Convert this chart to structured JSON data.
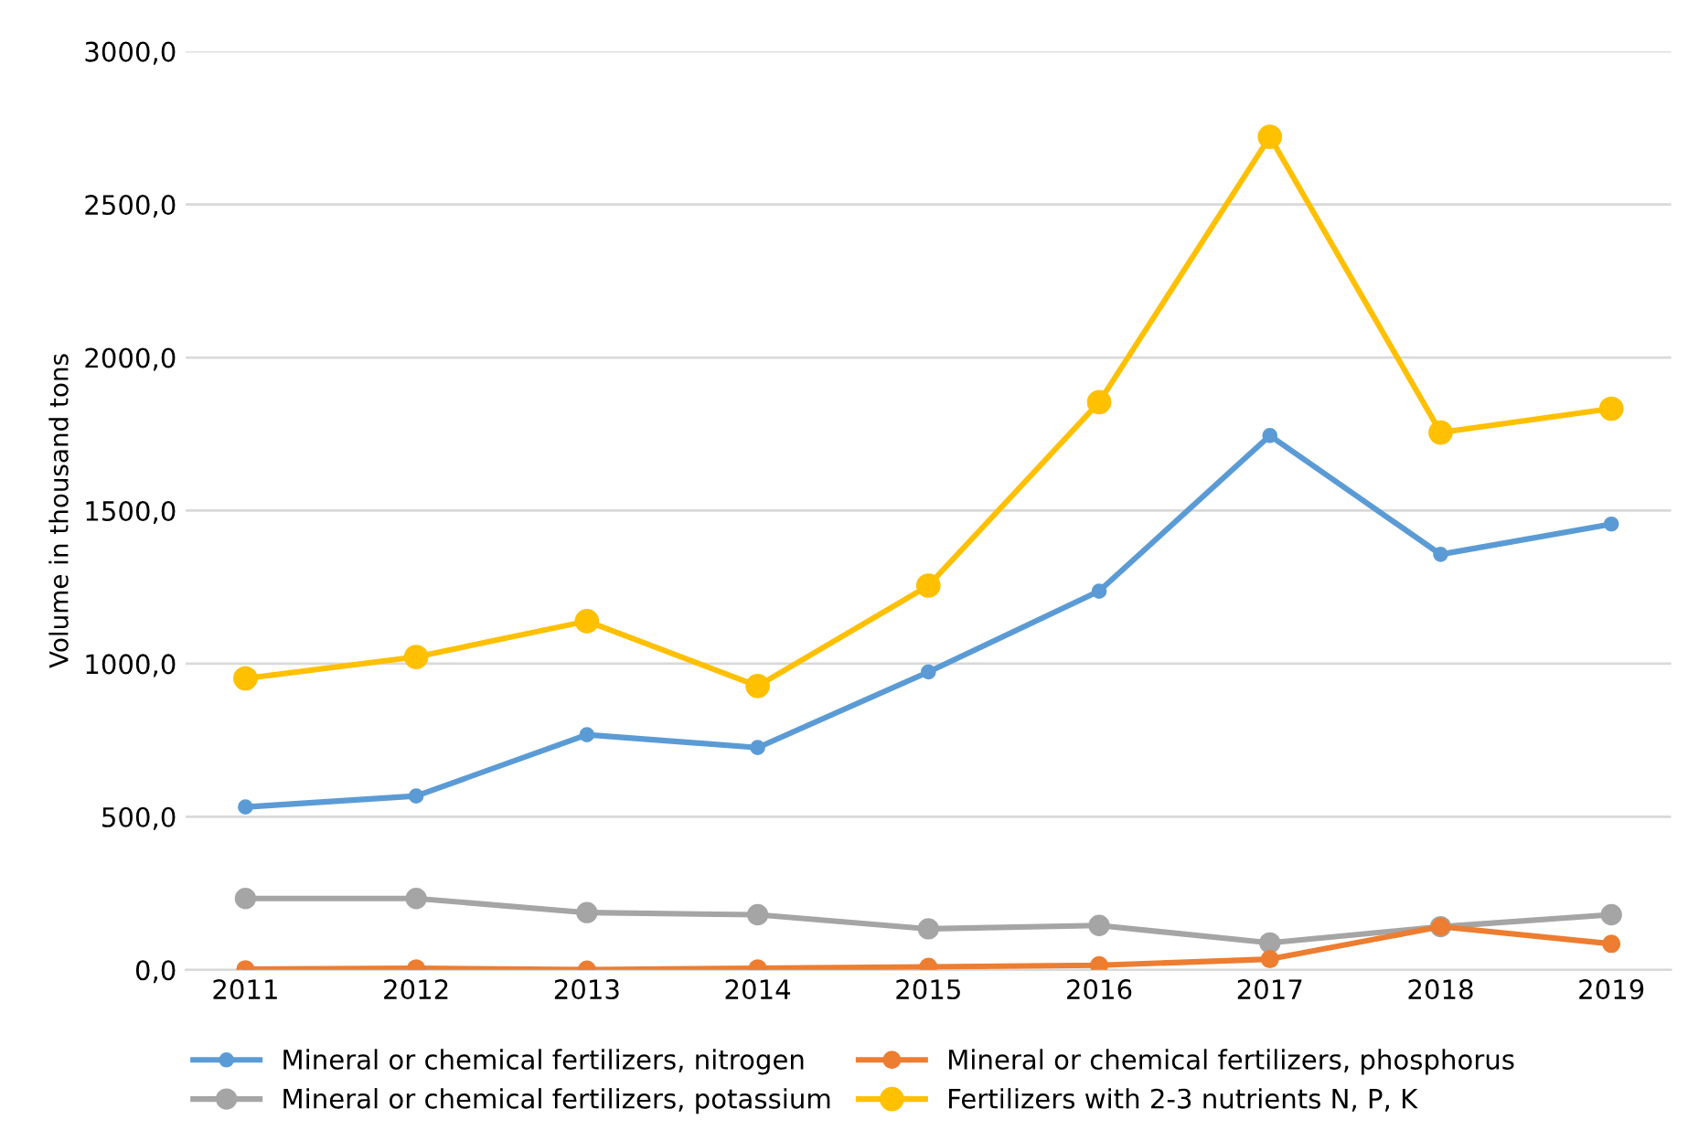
{
  "chart_data": {
    "type": "line",
    "ylabel": "Volume in thousand tons",
    "categories": [
      "2011",
      "2012",
      "2013",
      "2014",
      "2015",
      "2016",
      "2017",
      "2018",
      "2019"
    ],
    "series": [
      {
        "name": "Mineral or chemical fertilizers, nitrogen",
        "color": "#5b9bd5",
        "values": [
          532,
          568,
          768,
          726,
          973,
          1237,
          1745,
          1357,
          1456
        ]
      },
      {
        "name": "Mineral or chemical fertilizers, phosphorus",
        "color": "#ed7d31",
        "values": [
          2,
          5,
          1,
          5,
          10,
          15,
          35,
          141,
          85
        ]
      },
      {
        "name": "Mineral or chemical fertilizers, potassium",
        "color": "#a5a5a5",
        "values": [
          233,
          233,
          187,
          180,
          134,
          145,
          88,
          141,
          180
        ]
      },
      {
        "name": "Fertilizers with 2-3 nutrients N, P, K",
        "color": "#ffc000",
        "values": [
          952,
          1022,
          1139,
          927,
          1255,
          1854,
          2721,
          1755,
          1833
        ]
      }
    ],
    "ylim": [
      0,
      3000
    ],
    "yticks": [
      {
        "value": 0,
        "label": "0,0"
      },
      {
        "value": 500,
        "label": "500,0"
      },
      {
        "value": 1000,
        "label": "1000,0"
      },
      {
        "value": 1500,
        "label": "1500,0"
      },
      {
        "value": 2000,
        "label": "2000,0"
      },
      {
        "value": 2500,
        "label": "2500,0"
      },
      {
        "value": 3000,
        "label": "3000,0"
      }
    ],
    "grid": "y",
    "legend": "bottom",
    "marker": "circle",
    "line_style": "solid"
  }
}
